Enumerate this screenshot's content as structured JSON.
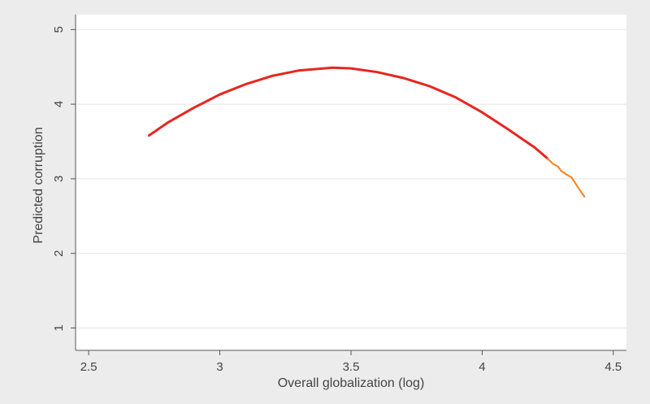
{
  "chart_data": {
    "type": "line",
    "xlabel": "Overall globalization (log)",
    "ylabel": "Predicted corruption",
    "xlim": [
      2.45,
      4.55
    ],
    "ylim": [
      0.7,
      5.2
    ],
    "xticks": [
      2.5,
      3,
      3.5,
      4,
      4.5
    ],
    "xtick_labels": [
      "2.5",
      "3",
      "3.5",
      "4",
      "4.5"
    ],
    "yticks": [
      1,
      2,
      3,
      4,
      5
    ],
    "ytick_labels": [
      "1",
      "2",
      "3",
      "4",
      "5"
    ],
    "grid": "horizontal",
    "series": [
      {
        "color": "#e8251f",
        "x": [
          2.73,
          2.8,
          2.9,
          3.0,
          3.1,
          3.2,
          3.3,
          3.43,
          3.5,
          3.6,
          3.7,
          3.8,
          3.9,
          4.0,
          4.1,
          4.2,
          4.25
        ],
        "y": [
          3.58,
          3.75,
          3.95,
          4.13,
          4.27,
          4.38,
          4.45,
          4.49,
          4.48,
          4.43,
          4.35,
          4.24,
          4.09,
          3.89,
          3.66,
          3.42,
          3.27
        ]
      },
      {
        "color": "#f08a2a",
        "x": [
          4.25,
          4.27,
          4.29,
          4.3,
          4.32,
          4.34,
          4.35,
          4.37,
          4.39
        ],
        "y": [
          3.27,
          3.2,
          3.16,
          3.11,
          3.06,
          3.02,
          2.97,
          2.86,
          2.76
        ]
      }
    ]
  }
}
